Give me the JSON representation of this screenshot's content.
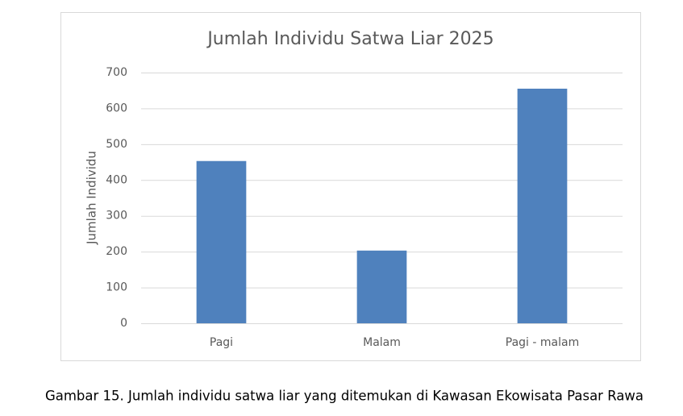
{
  "chart_data": {
    "type": "bar",
    "title": "Jumlah Individu Satwa Liar 2025",
    "y_label": "Jumlah Individu",
    "categories": [
      "Pagi",
      "Malam",
      "Pagi - malam"
    ],
    "values": [
      453,
      203,
      655
    ],
    "color": "#4f81bd",
    "ylim": [
      0,
      700
    ],
    "yticks": [
      0,
      100,
      200,
      300,
      400,
      500,
      600,
      700
    ],
    "grid": true
  },
  "caption": "Gambar 15. Jumlah individu satwa liar yang ditemukan di Kawasan Ekowisata Pasar Rawa"
}
